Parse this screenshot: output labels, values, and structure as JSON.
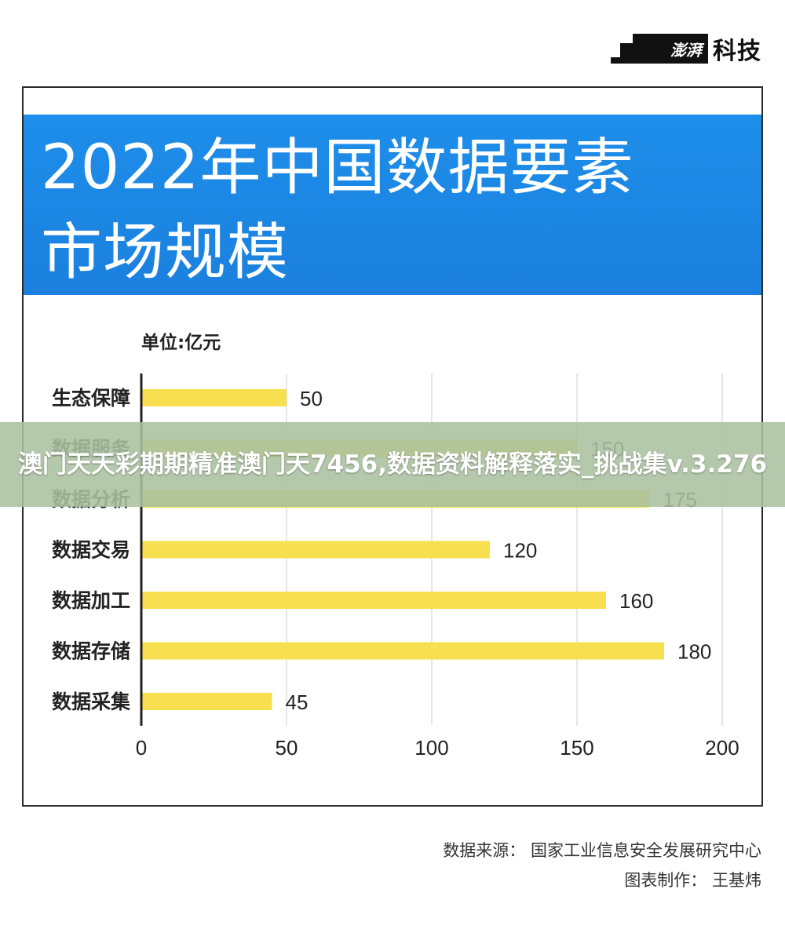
{
  "logo": {
    "brand": "澎湃",
    "text": "科技"
  },
  "header": {
    "title": "2022年中国数据要素市场规模"
  },
  "chart_data": {
    "type": "bar",
    "orientation": "horizontal",
    "unit_label": "单位:亿元",
    "categories": [
      "生态保障",
      "数据服务",
      "数据分析",
      "数据交易",
      "数据加工",
      "数据存储",
      "数据采集"
    ],
    "values": [
      50,
      150,
      175,
      120,
      160,
      180,
      45
    ],
    "xlim": [
      0,
      200
    ],
    "xticks": [
      0,
      50,
      100,
      150,
      200
    ],
    "grid": true,
    "bar_color": "#f7df4f"
  },
  "footer": {
    "source": "数据来源： 国家工业信息安全发展研究中心",
    "credit": "图表制作： 王基炜"
  },
  "overlay": {
    "text": "澳门天天彩期期精准澳门天7456,数据资料解释落实_挑战集v.3.276"
  }
}
